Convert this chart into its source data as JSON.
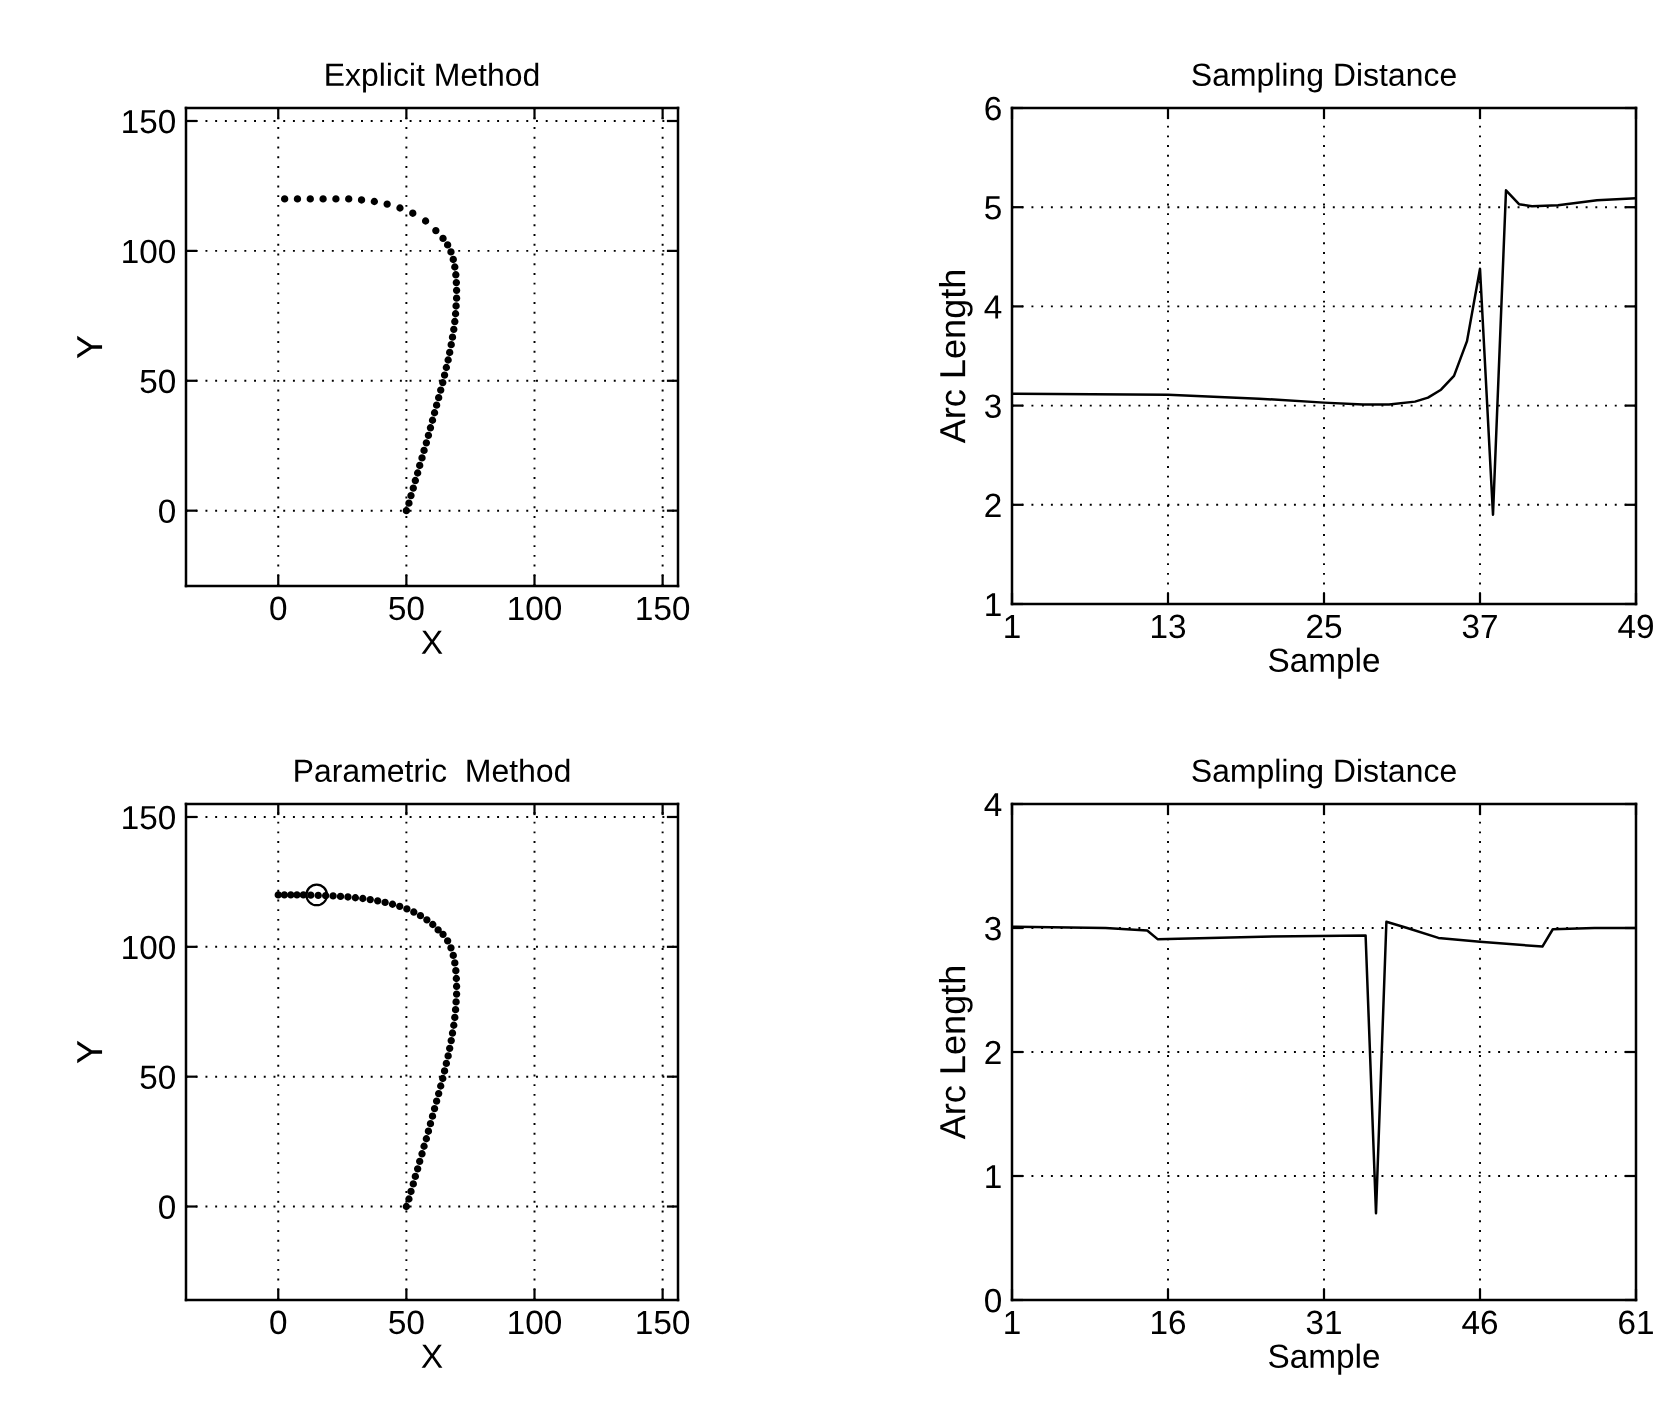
{
  "chart_data": [
    {
      "type": "scatter",
      "title": "Explicit Method",
      "xlabel": "X",
      "ylabel": "Y",
      "xlim": [
        -36,
        156
      ],
      "ylim": [
        -29,
        155
      ],
      "xticks": [
        0,
        50,
        100,
        150
      ],
      "yticks": [
        0,
        50,
        100,
        150
      ],
      "grid": true,
      "marker": "circle",
      "series": [
        {
          "color": "#000000",
          "x": [
            50,
            51,
            51.8,
            52.7,
            53.5,
            54.4,
            55.2,
            56.1,
            56.9,
            57.8,
            58.6,
            59.4,
            60.2,
            61,
            61.8,
            62.6,
            63.4,
            64.2,
            64.9,
            65.6,
            66.3,
            66.9,
            67.5,
            68,
            68.5,
            68.9,
            69.2,
            69.4,
            69.6,
            69.6,
            69.5,
            69.3,
            68.9,
            68.3,
            67.4,
            66.1,
            64.3,
            61.5,
            57.5,
            52.5,
            47.5,
            42.5,
            37.5,
            32.5,
            27.5,
            22.5,
            17.5,
            12.5,
            7.5,
            2.5
          ],
          "values": [
            0,
            2.9,
            5.8,
            8.7,
            11.6,
            14.5,
            17.4,
            20.3,
            23.2,
            26.1,
            29,
            31.9,
            34.8,
            37.7,
            40.6,
            43.5,
            46.4,
            49.3,
            52.2,
            55.1,
            58,
            60.9,
            63.9,
            66.8,
            69.8,
            72.8,
            75.8,
            78.8,
            81.8,
            84.8,
            87.8,
            90.8,
            93.8,
            96.7,
            99.6,
            102.3,
            104.8,
            107.8,
            111.5,
            114.5,
            116.5,
            118,
            119,
            119.6,
            120,
            120,
            120,
            120,
            120,
            120
          ]
        }
      ]
    },
    {
      "type": "line",
      "title": "Sampling Distance",
      "xlabel": "Sample",
      "ylabel": "Arc Length",
      "xlim": [
        1,
        49
      ],
      "ylim": [
        1,
        6
      ],
      "xticks": [
        1,
        13,
        25,
        37,
        49
      ],
      "yticks": [
        1,
        2,
        3,
        4,
        5,
        6
      ],
      "grid": true,
      "series": [
        {
          "color": "#000000",
          "x": [
            1,
            13,
            20,
            25,
            28,
            30,
            32,
            33,
            34,
            35,
            36,
            37,
            38,
            39,
            40,
            41,
            43,
            46,
            49
          ],
          "values": [
            3.12,
            3.11,
            3.07,
            3.03,
            3.01,
            3.01,
            3.04,
            3.08,
            3.16,
            3.3,
            3.65,
            4.38,
            1.9,
            5.17,
            5.03,
            5.01,
            5.02,
            5.07,
            5.09
          ]
        }
      ]
    },
    {
      "type": "scatter",
      "title": "Parametric  Method",
      "xlabel": "X",
      "ylabel": "Y",
      "xlim": [
        -36,
        156
      ],
      "ylim": [
        -36,
        155
      ],
      "xticks": [
        0,
        50,
        100,
        150
      ],
      "yticks": [
        0,
        50,
        100,
        150
      ],
      "grid": true,
      "series": [
        {
          "color": "#000000",
          "marker": "circle",
          "x": [
            50,
            51,
            51.8,
            52.7,
            53.5,
            54.4,
            55.2,
            56.1,
            56.9,
            57.8,
            58.6,
            59.4,
            60.2,
            61,
            61.8,
            62.6,
            63.4,
            64.2,
            64.9,
            65.6,
            66.3,
            66.9,
            67.5,
            68,
            68.5,
            68.9,
            69.2,
            69.4,
            69.6,
            69.6,
            69.5,
            69.3,
            68.9,
            68.3,
            67.4,
            66.1,
            64.3,
            62.4,
            60.3,
            58,
            55.5,
            52.9,
            50.2,
            47.4,
            44.6,
            41.7,
            38.8,
            35.9,
            33,
            30.1,
            27.2,
            24.3,
            21.4,
            18.5,
            15.6,
            12.7,
            9.8,
            7.3,
            4.9,
            2.4,
            0
          ],
          "values": [
            0,
            2.9,
            5.8,
            8.7,
            11.6,
            14.5,
            17.4,
            20.3,
            23.2,
            26.1,
            29,
            31.9,
            34.8,
            37.7,
            40.6,
            43.5,
            46.4,
            49.3,
            52.2,
            55.1,
            58,
            60.9,
            63.9,
            66.8,
            69.8,
            72.8,
            75.8,
            78.8,
            81.8,
            84.8,
            87.8,
            90.8,
            93.8,
            96.7,
            99.6,
            102.3,
            104.8,
            106.5,
            108.6,
            110.4,
            112,
            113.4,
            114.6,
            115.6,
            116.4,
            117.1,
            117.7,
            118.2,
            118.6,
            118.9,
            119.2,
            119.4,
            119.6,
            119.7,
            119.8,
            119.9,
            120,
            120,
            120,
            120,
            120
          ]
        },
        {
          "color": "#000000",
          "marker": "hollow_circle",
          "x": [
            15
          ],
          "values": [
            120
          ]
        }
      ]
    },
    {
      "type": "line",
      "title": "Sampling Distance",
      "xlabel": "Sample",
      "ylabel": "Arc Length",
      "xlim": [
        1,
        61
      ],
      "ylim": [
        0,
        4
      ],
      "xticks": [
        1,
        16,
        31,
        46,
        61
      ],
      "yticks": [
        0,
        1,
        2,
        3,
        4
      ],
      "grid": true,
      "series": [
        {
          "color": "#000000",
          "x": [
            1,
            10,
            14,
            15,
            25,
            35,
            36,
            37,
            39,
            42,
            46,
            52,
            53,
            57,
            61
          ],
          "values": [
            3.01,
            3.0,
            2.98,
            2.91,
            2.93,
            2.94,
            0.7,
            3.05,
            3.0,
            2.92,
            2.89,
            2.85,
            2.99,
            3.0,
            3.0
          ]
        }
      ]
    }
  ]
}
